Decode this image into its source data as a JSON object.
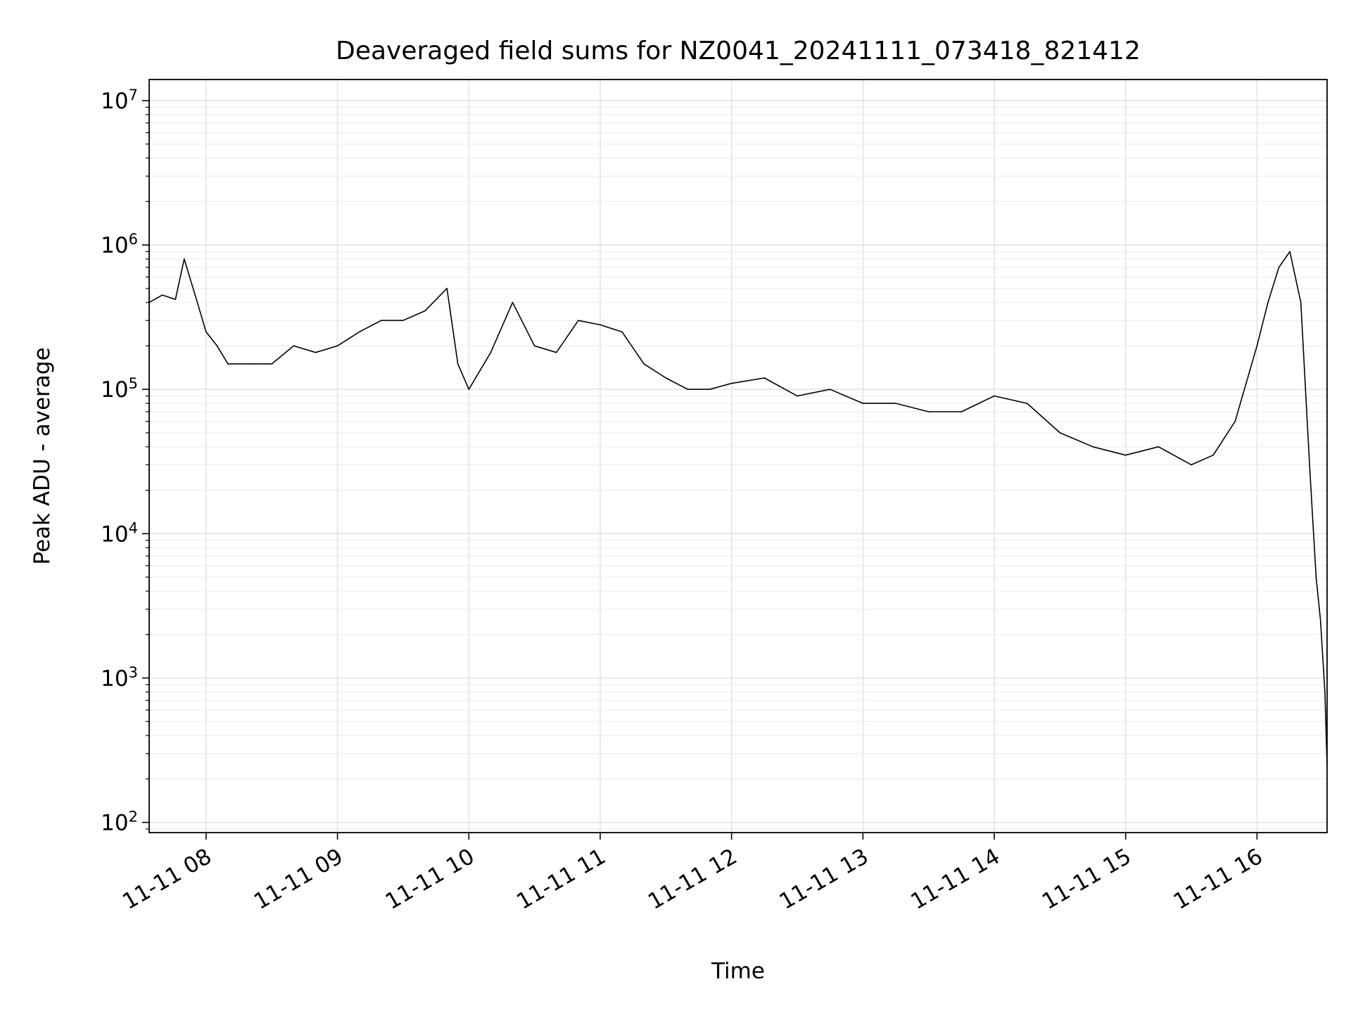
{
  "chart_data": {
    "type": "line",
    "title": "Deaveraged field sums for NZ0041_20241111_073418_821412",
    "xlabel": "Time",
    "ylabel": "Peak ADU - average",
    "yscale": "log",
    "xlim": [
      "11-11 07:34",
      "11-11 16:32"
    ],
    "ylim": [
      85,
      14000000
    ],
    "grid": true,
    "x_ticks": [
      {
        "label": "11-11 08",
        "time": "11-11 08:00"
      },
      {
        "label": "11-11 09",
        "time": "11-11 09:00"
      },
      {
        "label": "11-11 10",
        "time": "11-11 10:00"
      },
      {
        "label": "11-11 11",
        "time": "11-11 11:00"
      },
      {
        "label": "11-11 12",
        "time": "11-11 12:00"
      },
      {
        "label": "11-11 13",
        "time": "11-11 13:00"
      },
      {
        "label": "11-11 14",
        "time": "11-11 14:00"
      },
      {
        "label": "11-11 15",
        "time": "11-11 15:00"
      },
      {
        "label": "11-11 16",
        "time": "11-11 16:00"
      }
    ],
    "y_ticks": [
      {
        "base": "10",
        "exp": "2",
        "value": 100
      },
      {
        "base": "10",
        "exp": "3",
        "value": 1000
      },
      {
        "base": "10",
        "exp": "4",
        "value": 10000
      },
      {
        "base": "10",
        "exp": "5",
        "value": 100000
      },
      {
        "base": "10",
        "exp": "6",
        "value": 1000000
      },
      {
        "base": "10",
        "exp": "7",
        "value": 10000000
      }
    ],
    "series": [
      {
        "color": "#000000",
        "x": [
          "11-11 07:34",
          "11-11 07:40",
          "11-11 07:46",
          "11-11 07:50",
          "11-11 07:55",
          "11-11 08:00",
          "11-11 08:05",
          "11-11 08:10",
          "11-11 08:20",
          "11-11 08:30",
          "11-11 08:40",
          "11-11 08:50",
          "11-11 09:00",
          "11-11 09:10",
          "11-11 09:20",
          "11-11 09:30",
          "11-11 09:40",
          "11-11 09:50",
          "11-11 09:55",
          "11-11 10:00",
          "11-11 10:10",
          "11-11 10:20",
          "11-11 10:30",
          "11-11 10:40",
          "11-11 10:50",
          "11-11 11:00",
          "11-11 11:10",
          "11-11 11:20",
          "11-11 11:30",
          "11-11 11:40",
          "11-11 11:50",
          "11-11 12:00",
          "11-11 12:15",
          "11-11 12:30",
          "11-11 12:45",
          "11-11 13:00",
          "11-11 13:15",
          "11-11 13:30",
          "11-11 13:45",
          "11-11 14:00",
          "11-11 14:15",
          "11-11 14:30",
          "11-11 14:45",
          "11-11 15:00",
          "11-11 15:15",
          "11-11 15:30",
          "11-11 15:40",
          "11-11 15:50",
          "11-11 16:00",
          "11-11 16:05",
          "11-11 16:10",
          "11-11 16:15",
          "11-11 16:20",
          "11-11 16:24",
          "11-11 16:27",
          "11-11 16:29",
          "11-11 16:31",
          "11-11 16:32"
        ],
        "y": [
          400000,
          450000,
          420000,
          800000,
          450000,
          250000,
          200000,
          150000,
          150000,
          150000,
          200000,
          180000,
          200000,
          250000,
          300000,
          300000,
          350000,
          500000,
          150000,
          100000,
          180000,
          400000,
          200000,
          180000,
          300000,
          280000,
          250000,
          150000,
          120000,
          100000,
          100000,
          110000,
          120000,
          90000,
          100000,
          80000,
          80000,
          70000,
          70000,
          90000,
          80000,
          50000,
          40000,
          35000,
          40000,
          30000,
          35000,
          60000,
          200000,
          400000,
          700000,
          900000,
          400000,
          30000,
          5000,
          2500,
          800,
          250
        ]
      }
    ]
  }
}
